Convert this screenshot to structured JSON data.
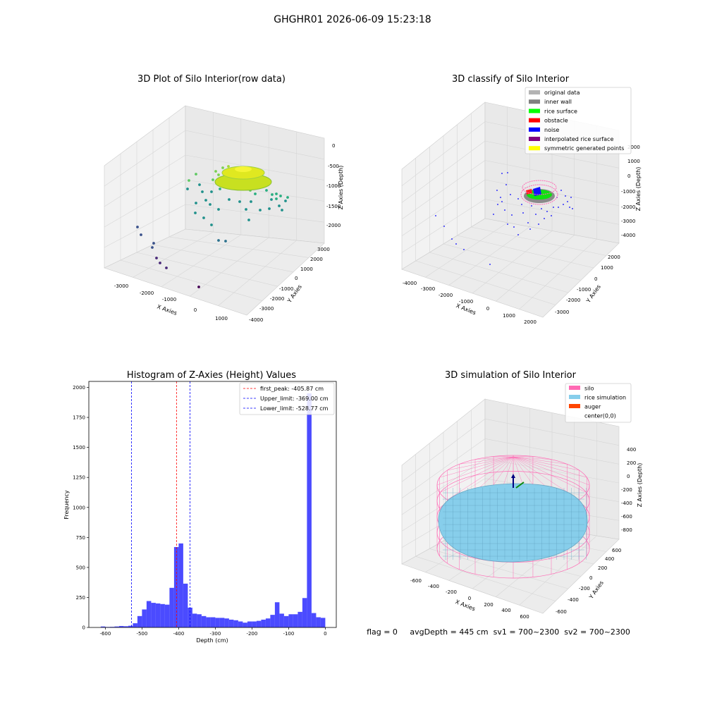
{
  "figure_title": "GHGHR01 2026-06-09 15:23:18",
  "colors": {
    "histogram_bar": "#4b4bff",
    "first_peak_line": "#ff0000",
    "limit_line": "#0000ff",
    "pane": "#f2f2f2",
    "grid": "#d6d6d6",
    "silo": "#ff69b4",
    "rice_simulation": "#87ceeb",
    "auger": "#ff4500"
  },
  "chart_data": [
    {
      "type": "scatter",
      "title": "3D Plot of Silo Interior(row data)",
      "xlabel": "X Axies",
      "ylabel": "Y Axies",
      "zlabel": "Z Axies (Depth)",
      "x_ticks": [
        "-3000",
        "-2000",
        "-1000",
        "0",
        "1000"
      ],
      "y_ticks": [
        "-4000",
        "-3000",
        "-2000",
        "-1000",
        "0",
        "1000",
        "2000",
        "3000"
      ],
      "z_ticks": [
        "-2000",
        "-1500",
        "-1000",
        "-500",
        "0"
      ],
      "projection": "3d",
      "colormap": "viridis"
    },
    {
      "type": "scatter",
      "title": "3D classify of Silo Interior",
      "xlabel": "X Axies",
      "ylabel": "Y Axies",
      "zlabel": "Z Axies (Depth)",
      "x_ticks": [
        "-4000",
        "-3000",
        "-2000",
        "-1000",
        "0",
        "1000",
        "2000"
      ],
      "y_ticks": [
        "-3000",
        "-2000",
        "-1000",
        "0",
        "1000",
        "2000"
      ],
      "z_ticks": [
        "-4000",
        "-3000",
        "-2000",
        "-1000",
        "0",
        "1000",
        "2000"
      ],
      "legend_position": "top-right",
      "legend": [
        {
          "label": "original data",
          "color": "#b3b3b3"
        },
        {
          "label": "inner wall",
          "color": "#808080"
        },
        {
          "label": "rice surface",
          "color": "#00ff00"
        },
        {
          "label": "obstacle",
          "color": "#ff0000"
        },
        {
          "label": "noise",
          "color": "#0000ff"
        },
        {
          "label": "interpolated rice surface",
          "color": "#800080"
        },
        {
          "label": "symmetric generated points",
          "color": "#ffff00"
        }
      ],
      "projection": "3d"
    },
    {
      "type": "bar",
      "title": "Histogram of Z-Axies (Height) Values",
      "xlabel": "Depth (cm)",
      "ylabel": "Frequency",
      "xlim": [
        -645,
        30
      ],
      "ylim": [
        0,
        2050
      ],
      "x_ticks": [
        -600,
        -500,
        -400,
        -300,
        -200,
        -100,
        0
      ],
      "y_ticks": [
        0,
        250,
        500,
        750,
        1000,
        1250,
        1500,
        1750,
        2000
      ],
      "bin_width": 12.5,
      "bin_starts": [
        -612.5,
        -600,
        -587.5,
        -575,
        -562.5,
        -550,
        -537.5,
        -525,
        -512.5,
        -500,
        -487.5,
        -475,
        -462.5,
        -450,
        -437.5,
        -425,
        -412.5,
        -400,
        -387.5,
        -375,
        -362.5,
        -350,
        -337.5,
        -325,
        -312.5,
        -300,
        -287.5,
        -275,
        -262.5,
        -250,
        -237.5,
        -225,
        -212.5,
        -200,
        -187.5,
        -175,
        -162.5,
        -150,
        -137.5,
        -125,
        -112.5,
        -100,
        -87.5,
        -75,
        -62.5,
        -50,
        -37.5,
        -25,
        -12.5
      ],
      "values": [
        8,
        4,
        5,
        8,
        12,
        10,
        14,
        35,
        95,
        150,
        220,
        205,
        200,
        195,
        190,
        330,
        670,
        700,
        365,
        165,
        115,
        110,
        95,
        85,
        85,
        80,
        80,
        75,
        65,
        60,
        50,
        40,
        50,
        50,
        55,
        65,
        75,
        105,
        210,
        115,
        95,
        110,
        110,
        130,
        245,
        1950,
        120,
        85,
        80
      ],
      "reference_lines": [
        {
          "label": "first_peak: -405.87 cm",
          "value": -405.87,
          "color": "#ff0000"
        },
        {
          "label": "Upper_limit: -369.00 cm",
          "value": -369.0,
          "color": "#0000ff"
        },
        {
          "label": "Lower_limit: -528.77 cm",
          "value": -528.77,
          "color": "#0000ff"
        }
      ],
      "legend_position": "top-right"
    },
    {
      "type": "area",
      "title": "3D simulation of Silo Interior",
      "xlabel": "X Axies",
      "ylabel": "Y Axies",
      "zlabel": "Z Axies (Depth)",
      "x_ticks": [
        "-600",
        "-400",
        "-200",
        "0",
        "200",
        "400",
        "600"
      ],
      "y_ticks": [
        "-600",
        "-400",
        "-200",
        "0",
        "200",
        "400",
        "600"
      ],
      "z_ticks": [
        "-800",
        "-600",
        "-400",
        "-200",
        "0",
        "200",
        "400"
      ],
      "legend_position": "top-right",
      "legend": [
        {
          "label": "silo",
          "color": "#ff69b4"
        },
        {
          "label": "rice simulation",
          "color": "#87ceeb"
        },
        {
          "label": "auger",
          "color": "#ff4500"
        },
        {
          "label": "center(0,0)",
          "color": ""
        }
      ],
      "projection": "3d"
    }
  ],
  "status_line": "flag = 0     avgDepth = 445 cm  sv1 = 700~2300  sv2 = 700~2300"
}
